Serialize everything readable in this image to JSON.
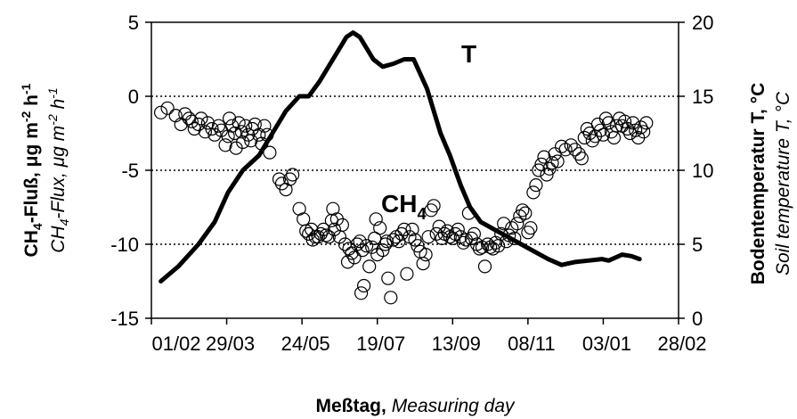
{
  "chart_data": {
    "type": "scatter",
    "x_axis": {
      "tick_labels": [
        "01/02",
        "29/03",
        "24/05",
        "19/07",
        "13/09",
        "08/11",
        "03/01",
        "28/02"
      ],
      "label_bold": "Meßtag,",
      "label_italic": "Measuring day",
      "range_days": [
        0,
        392
      ]
    },
    "y_left": {
      "range": [
        -15,
        5
      ],
      "ticks": [
        "5",
        "0",
        "-5",
        "-10",
        "-15"
      ],
      "label_bold": "CH4-Fluß, μg m-2 h-1",
      "label_italic": "CH4-Flux, μg m-2 h-1"
    },
    "y_right": {
      "range": [
        0,
        20
      ],
      "ticks": [
        "20",
        "15",
        "10",
        "5",
        "0"
      ],
      "label_bold": "Bodentemperatur T, °C",
      "label_italic": "Soil temperature T, °C"
    },
    "gridlines_left_y": [
      0,
      -5,
      -10
    ],
    "annotations": {
      "temperature": "T",
      "methane": "CH4"
    },
    "series": [
      {
        "name": "T",
        "axis": "right",
        "style": "thick-line",
        "points": [
          [
            7,
            2.5
          ],
          [
            20,
            3.5
          ],
          [
            35,
            5.0
          ],
          [
            47,
            6.5
          ],
          [
            57,
            8.5
          ],
          [
            68,
            10.0
          ],
          [
            80,
            11.0
          ],
          [
            90,
            12.5
          ],
          [
            100,
            14.0
          ],
          [
            110,
            15.0
          ],
          [
            117,
            15.0
          ],
          [
            125,
            16.0
          ],
          [
            135,
            17.5
          ],
          [
            145,
            19.0
          ],
          [
            150,
            19.3
          ],
          [
            155,
            19.0
          ],
          [
            165,
            17.5
          ],
          [
            172,
            17.0
          ],
          [
            180,
            17.2
          ],
          [
            188,
            17.5
          ],
          [
            195,
            17.5
          ],
          [
            205,
            15.5
          ],
          [
            215,
            12.5
          ],
          [
            222,
            11.0
          ],
          [
            230,
            9.0
          ],
          [
            237,
            7.5
          ],
          [
            245,
            6.5
          ],
          [
            255,
            6.0
          ],
          [
            265,
            5.5
          ],
          [
            275,
            5.0
          ],
          [
            285,
            4.5
          ],
          [
            295,
            4.0
          ],
          [
            305,
            3.6
          ],
          [
            315,
            3.8
          ],
          [
            325,
            3.9
          ],
          [
            335,
            4.0
          ],
          [
            340,
            3.9
          ],
          [
            350,
            4.3
          ],
          [
            357,
            4.2
          ],
          [
            363,
            4.0
          ]
        ]
      },
      {
        "name": "CH4",
        "axis": "left",
        "style": "open-circle",
        "points": [
          [
            7,
            -1.1
          ],
          [
            12,
            -0.8
          ],
          [
            18,
            -1.3
          ],
          [
            22,
            -1.9
          ],
          [
            25,
            -1.2
          ],
          [
            28,
            -1.5
          ],
          [
            30,
            -1.7
          ],
          [
            32,
            -2.2
          ],
          [
            35,
            -1.9
          ],
          [
            37,
            -1.5
          ],
          [
            40,
            -2.4
          ],
          [
            42,
            -1.8
          ],
          [
            45,
            -2.2
          ],
          [
            47,
            -2.6
          ],
          [
            50,
            -2.0
          ],
          [
            52,
            -2.3
          ],
          [
            55,
            -3.3
          ],
          [
            57,
            -2.7
          ],
          [
            58,
            -1.5
          ],
          [
            60,
            -2.0
          ],
          [
            62,
            -2.5
          ],
          [
            63,
            -3.5
          ],
          [
            65,
            -1.8
          ],
          [
            67,
            -2.4
          ],
          [
            68,
            -3.1
          ],
          [
            70,
            -2.0
          ],
          [
            72,
            -2.6
          ],
          [
            74,
            -3.0
          ],
          [
            75,
            -2.2
          ],
          [
            77,
            -1.9
          ],
          [
            80,
            -2.6
          ],
          [
            82,
            -3.2
          ],
          [
            84,
            -2.0
          ],
          [
            86,
            -2.6
          ],
          [
            88,
            -3.8
          ],
          [
            95,
            -5.6
          ],
          [
            97,
            -5.9
          ],
          [
            100,
            -6.3
          ],
          [
            103,
            -5.6
          ],
          [
            105,
            -5.3
          ],
          [
            110,
            -7.6
          ],
          [
            113,
            -8.3
          ],
          [
            115,
            -9.1
          ],
          [
            117,
            -9.3
          ],
          [
            119,
            -9.0
          ],
          [
            120,
            -9.7
          ],
          [
            122,
            -9.5
          ],
          [
            124,
            -9.5
          ],
          [
            126,
            -9.3
          ],
          [
            128,
            -9.0
          ],
          [
            130,
            -9.4
          ],
          [
            132,
            -9.5
          ],
          [
            134,
            -8.4
          ],
          [
            135,
            -7.6
          ],
          [
            136,
            -9.0
          ],
          [
            138,
            -8.3
          ],
          [
            140,
            -9.5
          ],
          [
            142,
            -8.7
          ],
          [
            144,
            -10.0
          ],
          [
            146,
            -11.2
          ],
          [
            147,
            -10.3
          ],
          [
            149,
            -10.6
          ],
          [
            151,
            -10.9
          ],
          [
            153,
            -10.0
          ],
          [
            155,
            -9.8
          ],
          [
            156,
            -13.3
          ],
          [
            157,
            -10.4
          ],
          [
            158,
            -12.8
          ],
          [
            160,
            -10.1
          ],
          [
            162,
            -11.5
          ],
          [
            164,
            -10.2
          ],
          [
            166,
            -9.6
          ],
          [
            167,
            -8.3
          ],
          [
            168,
            -10.7
          ],
          [
            170,
            -8.9
          ],
          [
            172,
            -10.4
          ],
          [
            174,
            -10.0
          ],
          [
            175,
            -9.8
          ],
          [
            176,
            -12.3
          ],
          [
            178,
            -13.6
          ],
          [
            180,
            -9.7
          ],
          [
            182,
            -9.5
          ],
          [
            184,
            -9.8
          ],
          [
            186,
            -9.3
          ],
          [
            188,
            -9.0
          ],
          [
            190,
            -12.0
          ],
          [
            192,
            -9.5
          ],
          [
            194,
            -9.0
          ],
          [
            196,
            -9.7
          ],
          [
            198,
            -10.1
          ],
          [
            200,
            -10.5
          ],
          [
            202,
            -11.3
          ],
          [
            204,
            -10.7
          ],
          [
            206,
            -9.5
          ],
          [
            208,
            -7.7
          ],
          [
            210,
            -7.4
          ],
          [
            212,
            -9.3
          ],
          [
            214,
            -8.8
          ],
          [
            216,
            -9.6
          ],
          [
            218,
            -9.3
          ],
          [
            220,
            -9.1
          ],
          [
            222,
            -9.5
          ],
          [
            224,
            -9.6
          ],
          [
            226,
            -9.3
          ],
          [
            228,
            -9.0
          ],
          [
            230,
            -9.5
          ],
          [
            232,
            -9.9
          ],
          [
            234,
            -9.7
          ],
          [
            236,
            -7.9
          ],
          [
            238,
            -9.6
          ],
          [
            240,
            -9.3
          ],
          [
            242,
            -10.0
          ],
          [
            244,
            -10.3
          ],
          [
            246,
            -10.2
          ],
          [
            248,
            -11.5
          ],
          [
            250,
            -10.0
          ],
          [
            252,
            -10.2
          ],
          [
            254,
            -10.3
          ],
          [
            256,
            -9.9
          ],
          [
            258,
            -10.1
          ],
          [
            260,
            -9.3
          ],
          [
            262,
            -8.6
          ],
          [
            264,
            -9.8
          ],
          [
            266,
            -9.4
          ],
          [
            268,
            -8.9
          ],
          [
            270,
            -9.6
          ],
          [
            272,
            -8.6
          ],
          [
            274,
            -8.1
          ],
          [
            276,
            -7.7
          ],
          [
            278,
            -7.9
          ],
          [
            280,
            -9.2
          ],
          [
            282,
            -8.9
          ],
          [
            284,
            -6.5
          ],
          [
            286,
            -6.0
          ],
          [
            288,
            -5.0
          ],
          [
            290,
            -4.6
          ],
          [
            292,
            -4.1
          ],
          [
            294,
            -5.3
          ],
          [
            296,
            -4.9
          ],
          [
            298,
            -4.5
          ],
          [
            300,
            -3.9
          ],
          [
            302,
            -4.4
          ],
          [
            305,
            -3.4
          ],
          [
            308,
            -3.6
          ],
          [
            312,
            -3.3
          ],
          [
            315,
            -3.6
          ],
          [
            318,
            -3.9
          ],
          [
            320,
            -4.2
          ],
          [
            322,
            -2.8
          ],
          [
            324,
            -2.2
          ],
          [
            326,
            -2.5
          ],
          [
            328,
            -3.0
          ],
          [
            330,
            -2.7
          ],
          [
            332,
            -1.9
          ],
          [
            334,
            -2.3
          ],
          [
            336,
            -2.6
          ],
          [
            338,
            -1.5
          ],
          [
            340,
            -1.8
          ],
          [
            342,
            -2.4
          ],
          [
            344,
            -2.8
          ],
          [
            346,
            -2.0
          ],
          [
            348,
            -1.5
          ],
          [
            350,
            -2.0
          ],
          [
            352,
            -1.7
          ],
          [
            354,
            -2.2
          ],
          [
            356,
            -2.5
          ],
          [
            358,
            -1.8
          ],
          [
            360,
            -2.3
          ],
          [
            362,
            -2.8
          ],
          [
            364,
            -2.1
          ],
          [
            366,
            -2.4
          ],
          [
            368,
            -1.8
          ]
        ]
      }
    ]
  }
}
